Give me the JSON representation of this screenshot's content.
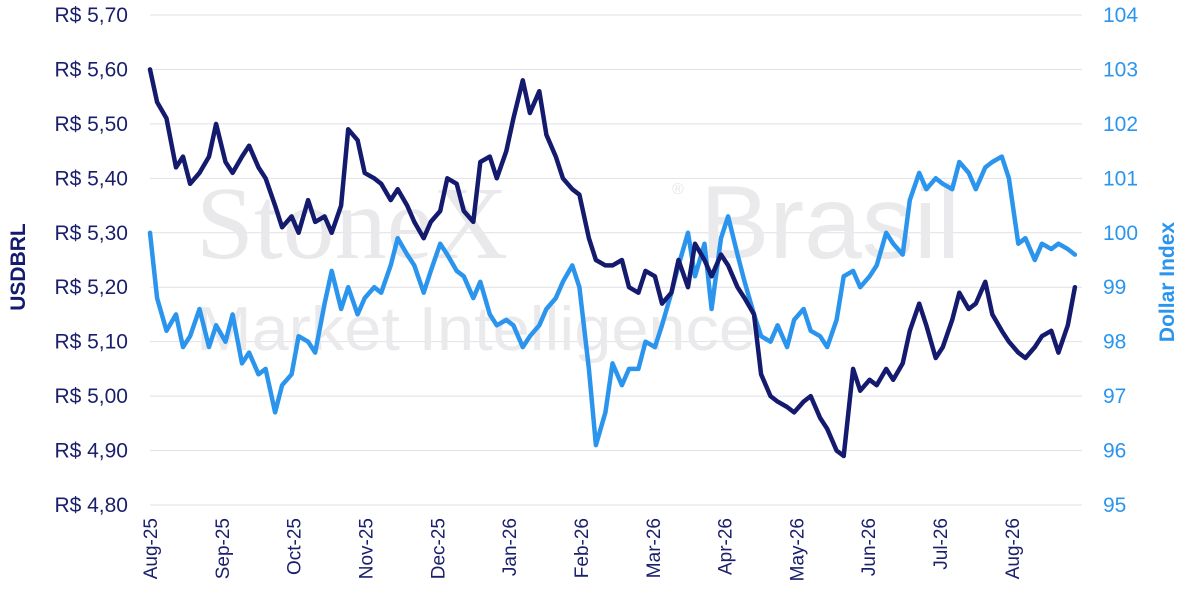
{
  "watermark": {
    "line1a": "StoneX",
    "reg": "®",
    "line1b": "Brasil",
    "line2": "Market Intelligence"
  },
  "chart_data": {
    "type": "line",
    "ylabel_left": "USDBRL",
    "ylabel_right": "Dollar Index",
    "x_tick_labels": [
      "Aug-25",
      "Sep-25",
      "Oct-25",
      "Nov-25",
      "Dec-25",
      "Jan-26",
      "Feb-26",
      "Mar-26",
      "Apr-26",
      "May-26",
      "Jun-26",
      "Jul-26",
      "Aug-26"
    ],
    "y_left_ticks": [
      "R$ 5,70",
      "R$ 5,60",
      "R$ 5,50",
      "R$ 5,40",
      "R$ 5,30",
      "R$ 5,20",
      "R$ 5,10",
      "R$ 5,00",
      "R$ 4,90",
      "R$ 4,80"
    ],
    "y_right_ticks": [
      "104",
      "103",
      "102",
      "101",
      "100",
      "99",
      "98",
      "97",
      "96",
      "95"
    ],
    "ylim_left": [
      4.8,
      5.7
    ],
    "ylim_right": [
      95,
      104
    ],
    "grid": "horizontal",
    "colors": {
      "usdbrl": "#141a6e",
      "dollar_index": "#2b95ee",
      "grid": "#e1e1e6"
    },
    "series": [
      {
        "name": "USDBRL",
        "axis": "left",
        "x": [
          "2025-08-01",
          "2025-08-04",
          "2025-08-08",
          "2025-08-12",
          "2025-08-15",
          "2025-08-18",
          "2025-08-22",
          "2025-08-26",
          "2025-08-29",
          "2025-09-02",
          "2025-09-05",
          "2025-09-09",
          "2025-09-12",
          "2025-09-16",
          "2025-09-19",
          "2025-09-23",
          "2025-09-26",
          "2025-09-30",
          "2025-10-03",
          "2025-10-07",
          "2025-10-10",
          "2025-10-14",
          "2025-10-17",
          "2025-10-21",
          "2025-10-24",
          "2025-10-28",
          "2025-10-31",
          "2025-11-04",
          "2025-11-07",
          "2025-11-11",
          "2025-11-14",
          "2025-11-18",
          "2025-11-21",
          "2025-11-25",
          "2025-11-28",
          "2025-12-02",
          "2025-12-05",
          "2025-12-09",
          "2025-12-12",
          "2025-12-16",
          "2025-12-19",
          "2025-12-23",
          "2025-12-26",
          "2025-12-30",
          "2026-01-02",
          "2026-01-06",
          "2026-01-09",
          "2026-01-13",
          "2026-01-16",
          "2026-01-20",
          "2026-01-23",
          "2026-01-27",
          "2026-01-30",
          "2026-02-03",
          "2026-02-06",
          "2026-02-10",
          "2026-02-13",
          "2026-02-17",
          "2026-02-20",
          "2026-02-24",
          "2026-02-27",
          "2026-03-03",
          "2026-03-06",
          "2026-03-10",
          "2026-03-13",
          "2026-03-17",
          "2026-03-20",
          "2026-03-24",
          "2026-03-27",
          "2026-03-31",
          "2026-04-03",
          "2026-04-07",
          "2026-04-10",
          "2026-04-14",
          "2026-04-17",
          "2026-04-21",
          "2026-04-24",
          "2026-04-28",
          "2026-05-01",
          "2026-05-05",
          "2026-05-08",
          "2026-05-12",
          "2026-05-15",
          "2026-05-19",
          "2026-05-22",
          "2026-05-26",
          "2026-05-29",
          "2026-06-02",
          "2026-06-05",
          "2026-06-09",
          "2026-06-12",
          "2026-06-16",
          "2026-06-19",
          "2026-06-23",
          "2026-06-26",
          "2026-06-30",
          "2026-07-03",
          "2026-07-07",
          "2026-07-10",
          "2026-07-14",
          "2026-07-17",
          "2026-07-21",
          "2026-07-24",
          "2026-07-28",
          "2026-07-31",
          "2026-08-04",
          "2026-08-07",
          "2026-08-11",
          "2026-08-14",
          "2026-08-18",
          "2026-08-21",
          "2026-08-25",
          "2026-08-28"
        ],
        "values": [
          5.6,
          5.54,
          5.51,
          5.42,
          5.44,
          5.39,
          5.41,
          5.44,
          5.5,
          5.43,
          5.41,
          5.44,
          5.46,
          5.42,
          5.4,
          5.35,
          5.31,
          5.33,
          5.3,
          5.36,
          5.32,
          5.33,
          5.3,
          5.35,
          5.49,
          5.47,
          5.41,
          5.4,
          5.39,
          5.36,
          5.38,
          5.35,
          5.32,
          5.29,
          5.32,
          5.34,
          5.4,
          5.39,
          5.34,
          5.32,
          5.43,
          5.44,
          5.4,
          5.45,
          5.51,
          5.58,
          5.52,
          5.56,
          5.48,
          5.44,
          5.4,
          5.38,
          5.37,
          5.29,
          5.25,
          5.24,
          5.24,
          5.25,
          5.2,
          5.19,
          5.23,
          5.22,
          5.17,
          5.19,
          5.25,
          5.2,
          5.28,
          5.25,
          5.22,
          5.26,
          5.24,
          5.2,
          5.18,
          5.15,
          5.04,
          5.0,
          4.99,
          4.98,
          4.97,
          4.99,
          5.0,
          4.96,
          4.94,
          4.9,
          4.89,
          5.05,
          5.01,
          5.03,
          5.02,
          5.05,
          5.03,
          5.06,
          5.12,
          5.17,
          5.13,
          5.07,
          5.09,
          5.14,
          5.19,
          5.16,
          5.17,
          5.21,
          5.15,
          5.12,
          5.1,
          5.08,
          5.07,
          5.09,
          5.11,
          5.12,
          5.08,
          5.13,
          5.2
        ]
      },
      {
        "name": "Dollar Index",
        "axis": "right",
        "x": [
          "2025-08-01",
          "2025-08-04",
          "2025-08-08",
          "2025-08-12",
          "2025-08-15",
          "2025-08-18",
          "2025-08-22",
          "2025-08-26",
          "2025-08-29",
          "2025-09-02",
          "2025-09-05",
          "2025-09-09",
          "2025-09-12",
          "2025-09-16",
          "2025-09-19",
          "2025-09-23",
          "2025-09-26",
          "2025-09-30",
          "2025-10-03",
          "2025-10-07",
          "2025-10-10",
          "2025-10-14",
          "2025-10-17",
          "2025-10-21",
          "2025-10-24",
          "2025-10-28",
          "2025-10-31",
          "2025-11-04",
          "2025-11-07",
          "2025-11-11",
          "2025-11-14",
          "2025-11-18",
          "2025-11-21",
          "2025-11-25",
          "2025-11-28",
          "2025-12-02",
          "2025-12-05",
          "2025-12-09",
          "2025-12-12",
          "2025-12-16",
          "2025-12-19",
          "2025-12-23",
          "2025-12-26",
          "2025-12-30",
          "2026-01-02",
          "2026-01-06",
          "2026-01-09",
          "2026-01-13",
          "2026-01-16",
          "2026-01-20",
          "2026-01-23",
          "2026-01-27",
          "2026-01-30",
          "2026-02-03",
          "2026-02-06",
          "2026-02-10",
          "2026-02-13",
          "2026-02-17",
          "2026-02-20",
          "2026-02-24",
          "2026-02-27",
          "2026-03-03",
          "2026-03-06",
          "2026-03-10",
          "2026-03-13",
          "2026-03-17",
          "2026-03-20",
          "2026-03-24",
          "2026-03-27",
          "2026-03-31",
          "2026-04-03",
          "2026-04-07",
          "2026-04-10",
          "2026-04-14",
          "2026-04-17",
          "2026-04-21",
          "2026-04-24",
          "2026-04-28",
          "2026-05-01",
          "2026-05-05",
          "2026-05-08",
          "2026-05-12",
          "2026-05-15",
          "2026-05-19",
          "2026-05-22",
          "2026-05-26",
          "2026-05-29",
          "2026-06-02",
          "2026-06-05",
          "2026-06-09",
          "2026-06-12",
          "2026-06-16",
          "2026-06-19",
          "2026-06-23",
          "2026-06-26",
          "2026-06-30",
          "2026-07-03",
          "2026-07-07",
          "2026-07-10",
          "2026-07-14",
          "2026-07-17",
          "2026-07-21",
          "2026-07-24",
          "2026-07-28",
          "2026-07-31",
          "2026-08-04",
          "2026-08-07",
          "2026-08-11",
          "2026-08-14",
          "2026-08-18",
          "2026-08-21",
          "2026-08-25",
          "2026-08-28"
        ],
        "values": [
          100.0,
          98.8,
          98.2,
          98.5,
          97.9,
          98.1,
          98.6,
          97.9,
          98.3,
          98.0,
          98.5,
          97.6,
          97.8,
          97.4,
          97.5,
          96.7,
          97.2,
          97.4,
          98.1,
          98.0,
          97.8,
          98.7,
          99.3,
          98.6,
          99.0,
          98.5,
          98.8,
          99.0,
          98.9,
          99.4,
          99.9,
          99.6,
          99.4,
          98.9,
          99.3,
          99.8,
          99.6,
          99.3,
          99.2,
          98.8,
          99.1,
          98.5,
          98.3,
          98.4,
          98.3,
          97.9,
          98.1,
          98.3,
          98.6,
          98.8,
          99.1,
          99.4,
          99.0,
          97.5,
          96.1,
          96.7,
          97.6,
          97.2,
          97.5,
          97.5,
          98.0,
          97.9,
          98.3,
          98.9,
          99.4,
          100.0,
          99.2,
          99.8,
          98.6,
          99.9,
          100.3,
          99.6,
          99.1,
          98.5,
          98.1,
          98.0,
          98.3,
          97.9,
          98.4,
          98.6,
          98.2,
          98.1,
          97.9,
          98.4,
          99.2,
          99.3,
          99.0,
          99.2,
          99.4,
          100.0,
          99.8,
          99.6,
          100.6,
          101.1,
          100.8,
          101.0,
          100.9,
          100.8,
          101.3,
          101.1,
          100.8,
          101.2,
          101.3,
          101.4,
          101.0,
          99.8,
          99.9,
          99.5,
          99.8,
          99.7,
          99.8,
          99.7,
          99.6
        ]
      }
    ]
  }
}
